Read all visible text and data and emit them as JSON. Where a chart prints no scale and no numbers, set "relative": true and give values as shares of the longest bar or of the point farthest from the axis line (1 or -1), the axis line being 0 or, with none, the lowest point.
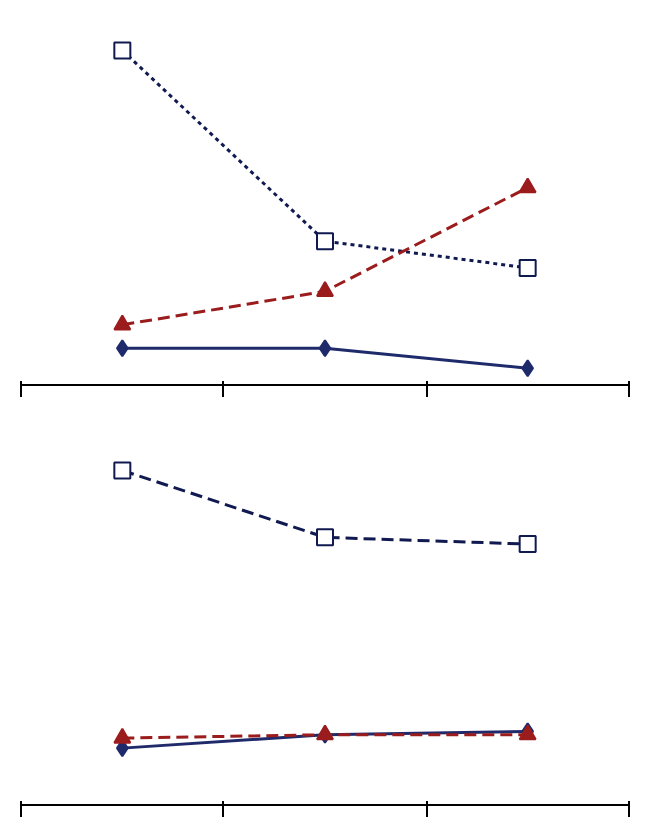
{
  "chart_data": [
    {
      "type": "line",
      "relative": true,
      "categories": [
        null,
        null,
        null
      ],
      "series": [
        {
          "color": "#1f2a6b",
          "values": [
            0.11,
            0.11,
            0.05
          ],
          "marker": "diamond",
          "line_style": "solid"
        },
        {
          "color": "#101a50",
          "values": [
            1,
            0.43,
            0.35
          ],
          "marker": "square",
          "line_style": "dotted"
        },
        {
          "color": "#9b1c1c",
          "values": [
            0.18,
            0.28,
            0.59
          ],
          "marker": "triangle",
          "line_style": "dashed"
        }
      ]
    },
    {
      "type": "line",
      "relative": true,
      "categories": [
        null,
        null,
        null
      ],
      "series": [
        {
          "color": "#1f2a6b",
          "values": [
            0.17,
            0.21,
            0.22
          ],
          "marker": "diamond",
          "line_style": "solid"
        },
        {
          "color": "#101a50",
          "values": [
            1,
            0.8,
            0.78
          ],
          "marker": "square",
          "line_style": "dashed"
        },
        {
          "color": "#9b1c1c",
          "values": [
            0.2,
            0.21,
            0.21
          ],
          "marker": "triangle",
          "line_style": "dashed"
        }
      ]
    }
  ]
}
